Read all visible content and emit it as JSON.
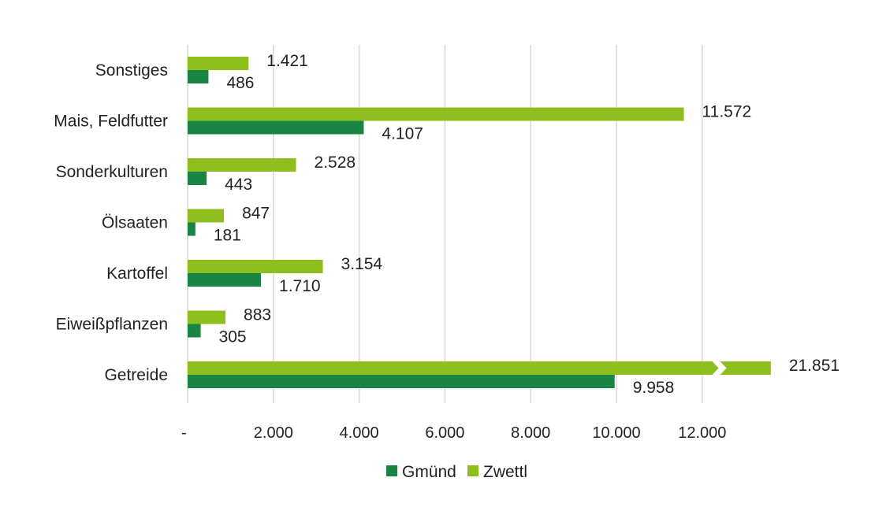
{
  "chart_data": {
    "type": "bar",
    "orientation": "horizontal",
    "categories": [
      "Sonstiges",
      "Mais, Feldfutter",
      "Sonderkulturen",
      "Ölsaaten",
      "Kartoffel",
      "Eiweißpflanzen",
      "Getreide"
    ],
    "series": [
      {
        "name": "Gmünd",
        "color": "#1a8444",
        "values": [
          486,
          4107,
          443,
          181,
          1710,
          305,
          9958
        ],
        "labels": [
          "486",
          "4.107",
          "443",
          "181",
          "1.710",
          "305",
          "9.958"
        ]
      },
      {
        "name": "Zwettl",
        "color": "#8fbf1f",
        "values": [
          1421,
          11572,
          2528,
          847,
          3154,
          883,
          21851
        ],
        "labels": [
          "1.421",
          "11.572",
          "2.528",
          "847",
          "3.154",
          "883",
          "21.851"
        ]
      }
    ],
    "x_ticks": [
      0,
      2000,
      4000,
      6000,
      8000,
      10000,
      12000
    ],
    "x_tick_labels": [
      "-",
      "2.000",
      "4.000",
      "6.000",
      "8.000",
      "10.000",
      "12.000"
    ],
    "xlim": [
      0,
      13500
    ],
    "axis_break": {
      "series": "Zwettl",
      "category": "Getreide",
      "at": 12400
    },
    "grid": true,
    "legend_position": "bottom",
    "title": "",
    "xlabel": "",
    "ylabel": ""
  }
}
